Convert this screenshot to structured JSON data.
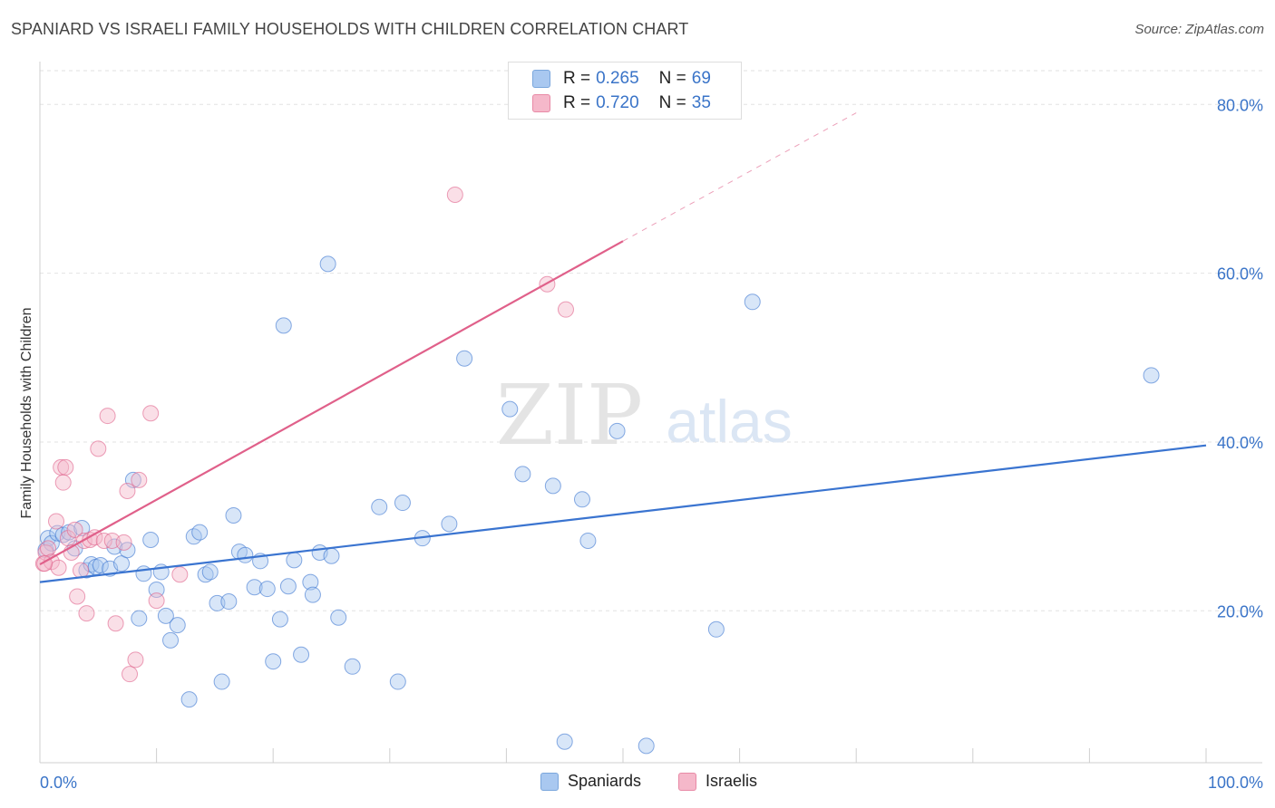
{
  "header": {
    "title": "SPANIARD VS ISRAELI FAMILY HOUSEHOLDS WITH CHILDREN CORRELATION CHART",
    "source": "Source: ZipAtlas.com"
  },
  "watermark": {
    "zip": "ZIP",
    "atlas": "atlas"
  },
  "legend": {
    "rows": [
      {
        "r_label": "R =",
        "r_value": "0.265",
        "n_label": "N =",
        "n_value": "69",
        "color": "#a9c8f0"
      },
      {
        "r_label": "R =",
        "r_value": "0.720",
        "n_label": "N =",
        "n_value": "35",
        "color": "#f5b8ca"
      }
    ]
  },
  "bottom_legend": {
    "items": [
      {
        "label": "Spaniards",
        "color": "#a9c8f0"
      },
      {
        "label": "Israelis",
        "color": "#f5b8ca"
      }
    ]
  },
  "chart_data": {
    "type": "scatter",
    "title": "SPANIARD VS ISRAELI FAMILY HOUSEHOLDS WITH CHILDREN CORRELATION CHART",
    "xlabel": "",
    "ylabel": "Family Households with Children",
    "xlim": [
      0,
      100
    ],
    "ylim": [
      2,
      84
    ],
    "x_tick_labels": [
      "0.0%",
      "100.0%"
    ],
    "y_ticks": [
      20,
      40,
      60,
      80
    ],
    "y_tick_labels": [
      "20.0%",
      "40.0%",
      "60.0%",
      "80.0%"
    ],
    "grid": true,
    "legend_position": "top-center",
    "series": [
      {
        "name": "Spaniards",
        "color": "#3a74d0",
        "fill": "#a9c8f0",
        "trendline": {
          "x": [
            0,
            100
          ],
          "y": [
            23.4,
            39.6
          ],
          "dashed_extension": false
        },
        "points": [
          [
            0.5,
            27.2
          ],
          [
            0.7,
            28.6
          ],
          [
            1.0,
            28.0
          ],
          [
            1.5,
            29.2
          ],
          [
            2.0,
            29.0
          ],
          [
            2.5,
            29.3
          ],
          [
            3.0,
            27.4
          ],
          [
            3.6,
            29.8
          ],
          [
            4.0,
            24.8
          ],
          [
            4.4,
            25.5
          ],
          [
            4.8,
            25.2
          ],
          [
            5.2,
            25.4
          ],
          [
            6.0,
            25.0
          ],
          [
            6.4,
            27.6
          ],
          [
            7.0,
            25.6
          ],
          [
            7.5,
            27.2
          ],
          [
            8.0,
            35.5
          ],
          [
            8.5,
            19.1
          ],
          [
            8.9,
            24.4
          ],
          [
            9.5,
            28.4
          ],
          [
            10.0,
            22.5
          ],
          [
            10.4,
            24.6
          ],
          [
            10.8,
            19.4
          ],
          [
            11.2,
            16.5
          ],
          [
            11.8,
            18.3
          ],
          [
            12.8,
            9.5
          ],
          [
            13.2,
            28.8
          ],
          [
            13.7,
            29.3
          ],
          [
            14.2,
            24.3
          ],
          [
            14.6,
            24.6
          ],
          [
            15.2,
            20.9
          ],
          [
            15.6,
            11.6
          ],
          [
            16.2,
            21.1
          ],
          [
            16.6,
            31.3
          ],
          [
            17.1,
            27.0
          ],
          [
            17.6,
            26.6
          ],
          [
            18.4,
            22.8
          ],
          [
            18.9,
            25.9
          ],
          [
            19.5,
            22.6
          ],
          [
            20.0,
            14.0
          ],
          [
            20.6,
            19.0
          ],
          [
            20.9,
            53.8
          ],
          [
            21.3,
            22.9
          ],
          [
            21.8,
            26.0
          ],
          [
            22.4,
            14.8
          ],
          [
            23.2,
            23.4
          ],
          [
            23.4,
            21.9
          ],
          [
            24.0,
            26.9
          ],
          [
            24.7,
            61.1
          ],
          [
            25.0,
            26.5
          ],
          [
            25.6,
            19.2
          ],
          [
            26.8,
            13.4
          ],
          [
            29.1,
            32.3
          ],
          [
            30.7,
            11.6
          ],
          [
            31.1,
            32.8
          ],
          [
            32.8,
            28.6
          ],
          [
            35.1,
            30.3
          ],
          [
            36.4,
            49.9
          ],
          [
            40.3,
            43.9
          ],
          [
            41.4,
            36.2
          ],
          [
            44.0,
            34.8
          ],
          [
            45.0,
            4.5
          ],
          [
            46.5,
            33.2
          ],
          [
            47.0,
            28.3
          ],
          [
            49.5,
            41.3
          ],
          [
            52.0,
            4.0
          ],
          [
            58.0,
            17.8
          ],
          [
            61.1,
            56.6
          ],
          [
            95.3,
            47.9
          ]
        ]
      },
      {
        "name": "Israelis",
        "color": "#e0608a",
        "fill": "#f5b8ca",
        "trendline": {
          "x": [
            0,
            50
          ],
          "y": [
            25.5,
            63.8
          ],
          "dashed_extension": true,
          "dashed_to": [
            70,
            79
          ]
        },
        "points": [
          [
            0.3,
            25.6
          ],
          [
            0.5,
            26.9
          ],
          [
            0.7,
            27.4
          ],
          [
            1.0,
            25.8
          ],
          [
            1.4,
            30.6
          ],
          [
            1.6,
            25.1
          ],
          [
            1.8,
            37.0
          ],
          [
            2.0,
            35.2
          ],
          [
            2.2,
            37.0
          ],
          [
            2.4,
            28.6
          ],
          [
            2.7,
            26.9
          ],
          [
            3.0,
            29.6
          ],
          [
            3.2,
            21.7
          ],
          [
            3.5,
            24.8
          ],
          [
            3.8,
            28.3
          ],
          [
            4.0,
            19.7
          ],
          [
            4.3,
            28.4
          ],
          [
            4.7,
            28.7
          ],
          [
            5.0,
            39.2
          ],
          [
            5.5,
            28.3
          ],
          [
            5.8,
            43.1
          ],
          [
            6.2,
            28.3
          ],
          [
            6.5,
            18.5
          ],
          [
            7.2,
            28.1
          ],
          [
            7.5,
            34.2
          ],
          [
            7.7,
            12.5
          ],
          [
            8.2,
            14.2
          ],
          [
            8.5,
            35.5
          ],
          [
            9.5,
            43.4
          ],
          [
            10.0,
            21.2
          ],
          [
            12.0,
            24.3
          ],
          [
            35.6,
            69.3
          ],
          [
            43.5,
            58.7
          ],
          [
            45.1,
            55.7
          ],
          [
            0.4,
            25.6
          ]
        ]
      }
    ]
  }
}
